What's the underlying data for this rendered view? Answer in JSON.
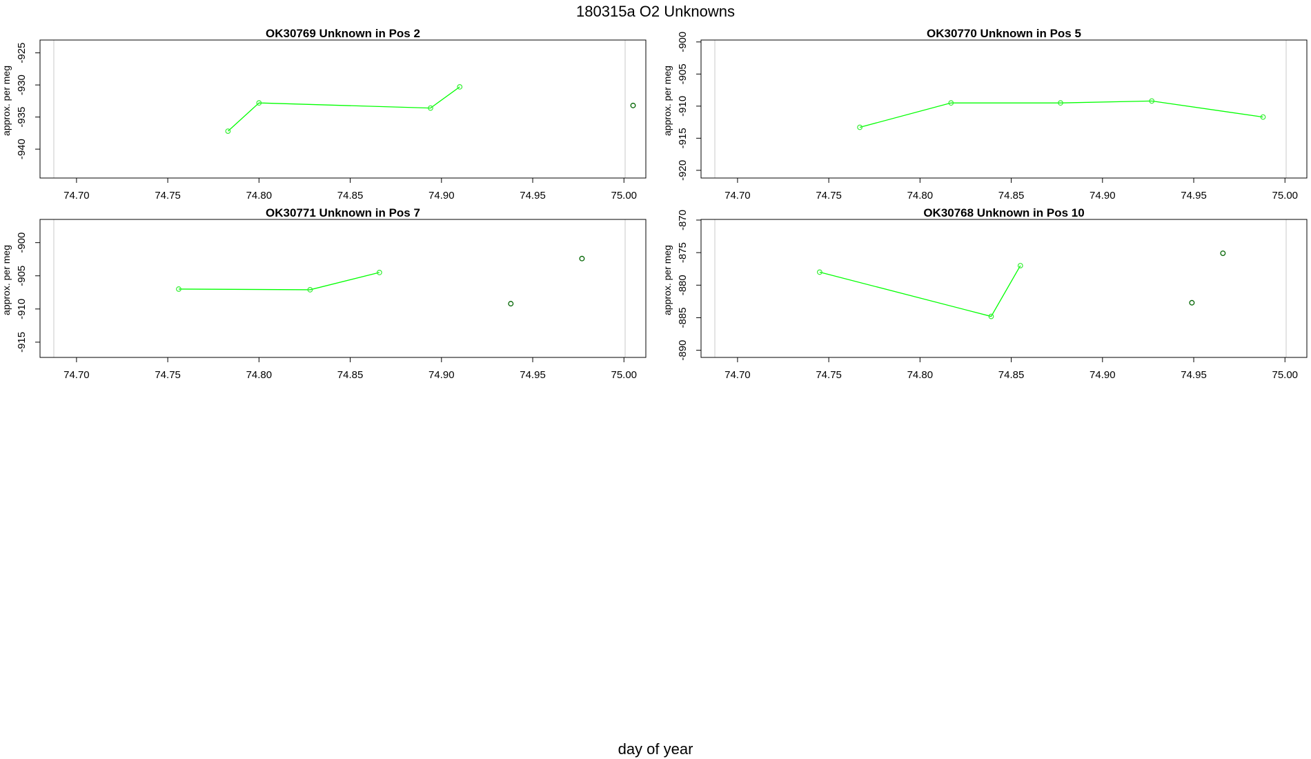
{
  "figure": {
    "title": "180315a  O2 Unknowns",
    "xlabel": "day of year"
  },
  "colors": {
    "line": "#00ff00",
    "point_light": "#33ee33",
    "point_dark": "#006400",
    "axis": "#000000",
    "refline": "#c8c8c8"
  },
  "chart_data": [
    {
      "type": "line",
      "title": "OK30769    Unknown in Pos 2",
      "ylabel": "approx. per meg",
      "xlim": [
        74.68,
        75.012
      ],
      "ylim": [
        -944.5,
        -923
      ],
      "xticks": [
        74.7,
        74.75,
        74.8,
        74.85,
        74.9,
        74.95,
        75.0
      ],
      "yticks": [
        -940,
        -935,
        -930,
        -925
      ],
      "series": [
        {
          "style": "line",
          "x": [
            74.783,
            74.8,
            74.894,
            74.91
          ],
          "y": [
            -937.2,
            -932.8,
            -933.6,
            -930.3
          ]
        },
        {
          "style": "points",
          "x": [
            75.005
          ],
          "y": [
            -933.2
          ]
        }
      ]
    },
    {
      "type": "line",
      "title": "OK30770    Unknown in Pos 5",
      "ylabel": "approx. per meg",
      "xlim": [
        74.68,
        75.012
      ],
      "ylim": [
        -921.2,
        -899.7
      ],
      "xticks": [
        74.7,
        74.75,
        74.8,
        74.85,
        74.9,
        74.95,
        75.0
      ],
      "yticks": [
        -920,
        -915,
        -910,
        -905,
        -900
      ],
      "series": [
        {
          "style": "line",
          "x": [
            74.767,
            74.817,
            74.877,
            74.927,
            74.988
          ],
          "y": [
            -913.3,
            -909.5,
            -909.5,
            -909.2,
            -911.7
          ]
        }
      ]
    },
    {
      "type": "line",
      "title": "OK30771    Unknown in Pos 7",
      "ylabel": "approx. per meg",
      "xlim": [
        74.68,
        75.012
      ],
      "ylim": [
        -917.3,
        -896.5
      ],
      "xticks": [
        74.7,
        74.75,
        74.8,
        74.85,
        74.9,
        74.95,
        75.0
      ],
      "yticks": [
        -915,
        -910,
        -905,
        -900
      ],
      "series": [
        {
          "style": "line",
          "x": [
            74.756,
            74.828,
            74.866
          ],
          "y": [
            -907.0,
            -907.1,
            -904.5
          ]
        },
        {
          "style": "points",
          "x": [
            74.938,
            74.977
          ],
          "y": [
            -909.2,
            -902.4
          ]
        }
      ]
    },
    {
      "type": "line",
      "title": "OK30768    Unknown in Pos 10",
      "ylabel": "approx. per meg",
      "xlim": [
        74.68,
        75.012
      ],
      "ylim": [
        -891.1,
        -869.9
      ],
      "xticks": [
        74.7,
        74.75,
        74.8,
        74.85,
        74.9,
        74.95,
        75.0
      ],
      "yticks": [
        -890,
        -885,
        -880,
        -875,
        -870
      ],
      "series": [
        {
          "style": "line",
          "x": [
            74.745,
            74.839,
            74.855
          ],
          "y": [
            -878.0,
            -884.8,
            -877.0
          ]
        },
        {
          "style": "points",
          "x": [
            74.949,
            74.966
          ],
          "y": [
            -882.7,
            -875.1
          ]
        }
      ]
    }
  ]
}
